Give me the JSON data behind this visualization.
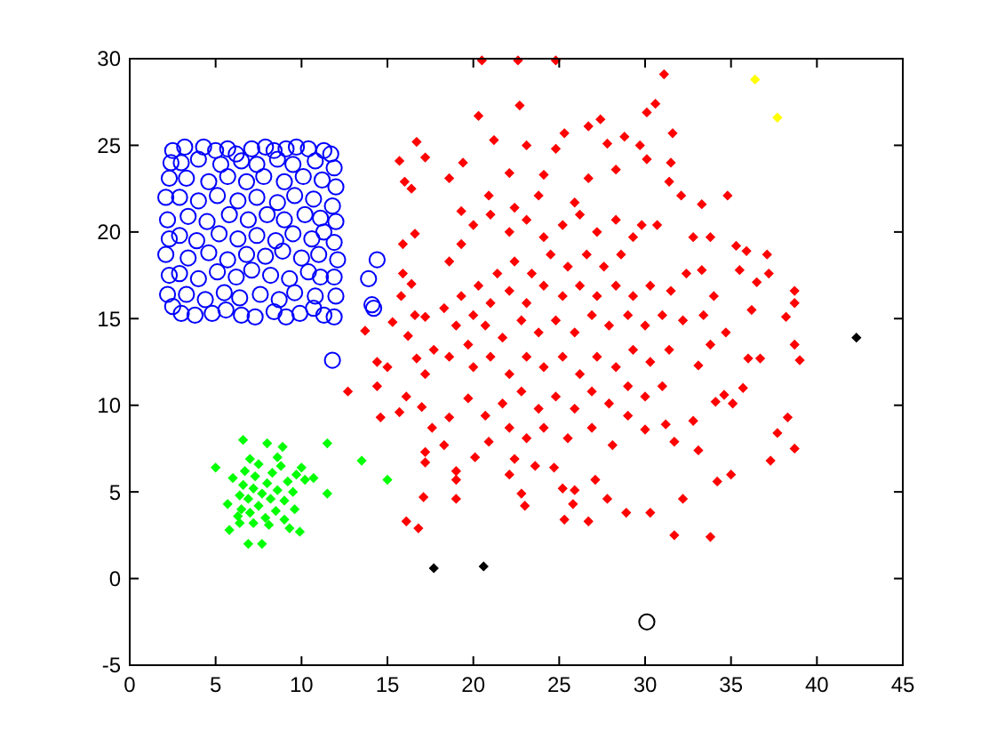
{
  "chart_data": {
    "type": "scatter",
    "xlim": [
      0,
      45
    ],
    "ylim": [
      -5,
      30
    ],
    "xticks": [
      0,
      5,
      10,
      15,
      20,
      25,
      30,
      35,
      40,
      45
    ],
    "yticks": [
      -5,
      0,
      5,
      10,
      15,
      20,
      25,
      30
    ],
    "marker": "diamond",
    "series": [
      {
        "color": "#0000ff",
        "marker": "circle",
        "x": [
          2.5,
          3.2,
          4.3,
          5.0,
          5.7,
          6.2,
          7.1,
          7.9,
          8.4,
          9.1,
          9.7,
          10.4,
          11.3,
          11.7,
          2.5,
          3.0,
          3.8,
          4.8,
          5.6,
          6.5,
          7.3,
          8.4,
          9.1,
          9.9,
          10.7,
          11.3,
          11.9,
          2.2,
          2.3,
          2.1,
          2.3,
          2.2,
          2.1,
          2.3,
          2.4,
          12.0,
          11.9,
          12.1,
          11.9,
          12.0,
          11.8,
          12.0,
          11.9,
          3.3,
          4.4,
          5.5,
          6.4,
          7.6,
          8.7,
          9.6,
          10.8,
          2.9,
          4.0,
          5.1,
          6.2,
          7.1,
          8.2,
          9.3,
          10.4,
          11.1,
          3.4,
          4.6,
          5.7,
          6.8,
          7.9,
          8.9,
          10.0,
          11.0,
          2.9,
          3.9,
          5.2,
          6.3,
          7.4,
          8.5,
          9.5,
          10.6,
          11.3,
          3.4,
          4.5,
          5.8,
          6.9,
          8.0,
          9.0,
          10.2,
          11.1,
          2.9,
          4.0,
          5.1,
          6.3,
          7.4,
          8.6,
          9.6,
          10.7,
          3.3,
          4.6,
          5.7,
          6.8,
          7.8,
          9.0,
          10.1,
          11.2,
          3.0,
          4.0,
          5.3,
          6.5,
          7.4,
          8.6,
          9.5,
          10.8,
          14.4,
          13.9,
          14.1,
          14.2,
          11.8
        ],
        "values": [
          24.7,
          24.9,
          24.9,
          24.7,
          24.8,
          24.5,
          24.8,
          24.9,
          24.7,
          24.8,
          24.9,
          24.8,
          24.7,
          24.5,
          15.7,
          15.3,
          15.2,
          15.3,
          15.5,
          15.2,
          15.1,
          15.4,
          15.1,
          15.3,
          15.6,
          15.2,
          15.1,
          16.4,
          17.5,
          18.7,
          19.6,
          20.7,
          22.0,
          23.1,
          24.0,
          16.3,
          17.4,
          18.4,
          19.4,
          20.6,
          21.5,
          22.6,
          23.7,
          16.4,
          16.1,
          16.5,
          16.2,
          16.4,
          16.1,
          16.5,
          16.3,
          17.6,
          17.3,
          17.7,
          17.4,
          17.8,
          17.5,
          17.3,
          17.7,
          17.4,
          18.5,
          18.8,
          18.4,
          18.7,
          18.6,
          18.9,
          18.5,
          18.7,
          19.8,
          19.5,
          19.9,
          19.6,
          19.8,
          19.5,
          19.9,
          19.6,
          20.0,
          20.9,
          20.6,
          21.0,
          20.7,
          21.0,
          20.7,
          21.0,
          20.8,
          22.0,
          21.8,
          22.1,
          21.8,
          22.0,
          21.7,
          22.1,
          21.9,
          23.1,
          22.9,
          23.2,
          22.9,
          23.2,
          22.9,
          23.2,
          23.0,
          24.0,
          24.2,
          23.9,
          24.1,
          23.9,
          24.2,
          23.9,
          24.1,
          18.4,
          17.3,
          15.8,
          15.6,
          12.6
        ]
      },
      {
        "color": "#00ff00",
        "x": [
          5.0,
          6.6,
          8.0,
          8.9,
          11.5,
          11.5,
          13.5,
          15.0,
          9.9,
          5.8,
          6.9,
          7.7,
          10.7,
          9.3,
          6.0,
          5.7,
          6.4,
          7.7,
          7.2,
          8.2,
          7.5,
          8.0,
          6.9,
          8.6,
          7.3,
          8.3,
          7.0,
          8.5,
          9.0,
          6.6,
          7.9,
          9.2,
          6.5,
          8.8,
          7.5,
          6.7,
          9.5,
          9.7,
          10.2,
          9.6,
          8.1,
          7.2,
          6.4,
          9.0,
          8.6,
          7.0,
          10.0,
          6.3
        ],
        "values": [
          6.4,
          8.0,
          7.8,
          7.6,
          7.8,
          4.9,
          6.8,
          5.7,
          2.7,
          2.8,
          2.0,
          2.0,
          5.8,
          2.9,
          5.8,
          4.3,
          3.2,
          4.9,
          5.2,
          4.6,
          4.2,
          5.5,
          4.6,
          5.1,
          5.9,
          6.1,
          3.8,
          3.9,
          4.5,
          5.4,
          3.5,
          5.6,
          4.0,
          6.5,
          6.6,
          6.2,
          5.0,
          6.0,
          5.7,
          4.0,
          3.1,
          3.2,
          4.8,
          3.4,
          7.0,
          6.9,
          6.4,
          3.6
        ]
      },
      {
        "color": "#ff0000",
        "x": [
          20.5,
          22.6,
          24.8,
          31.1,
          30.6,
          30.1,
          22.7,
          20.3,
          31.6,
          28.8,
          29.7,
          25.3,
          26.7,
          27.8,
          27.4,
          24.8,
          21.2,
          23.1,
          15.7,
          16.7,
          17.2,
          16.0,
          16.4,
          18.6,
          19.4,
          30.1,
          31.5,
          31.4,
          32.1,
          33.3,
          34.8,
          28.3,
          26.7,
          24.1,
          22.1,
          20.9,
          19.3,
          22.4,
          23.8,
          25.9,
          30.7,
          29.8,
          32.8,
          33.8,
          35.3,
          35.9,
          37.1,
          35.5,
          37.2,
          36.5,
          38.7,
          38.7,
          38.2,
          36.2,
          38.7,
          39.0,
          36.7,
          36.0,
          35.7,
          35.1,
          34.6,
          38.3,
          37.7,
          38.7,
          37.3,
          35.0,
          34.2,
          32.2,
          31.7,
          33.8,
          30.3,
          28.9,
          27.8,
          26.7,
          25.8,
          25.3,
          23.0,
          22.8,
          27.1,
          28.1,
          30.0,
          31.2,
          31.7,
          33.1,
          32.8,
          34.1,
          33.1,
          33.8,
          34.7,
          33.4,
          32.2,
          34.0,
          33.3,
          32.4,
          31.5,
          16.1,
          16.8,
          17.1,
          17.2,
          17.2,
          18.3,
          19.0,
          19.0,
          19.0,
          20.1,
          20.9,
          22.1,
          22.4,
          23.6,
          24.7,
          25.2,
          25.9,
          15.7,
          16.1,
          17.0,
          17.6,
          18.6,
          12.7,
          13.7,
          14.4,
          14.6,
          14.4,
          15.0,
          15.3,
          15.8,
          15.9,
          15.9,
          16.6,
          16.4,
          16.2,
          16.7,
          17.2,
          17.7,
          16.6,
          17.2,
          18.6,
          19.3,
          20.0,
          21.0,
          22.1,
          23.1,
          24.1,
          25.2,
          26.2,
          27.2,
          28.3,
          29.3,
          28.6,
          27.6,
          26.6,
          25.5,
          24.5,
          23.4,
          22.4,
          21.4,
          20.3,
          19.3,
          18.3,
          19.0,
          20.0,
          21.0,
          22.1,
          23.1,
          24.1,
          25.2,
          26.2,
          27.2,
          28.3,
          29.3,
          30.3,
          31.0,
          30.0,
          29.0,
          27.9,
          26.9,
          25.9,
          24.8,
          23.8,
          22.8,
          21.7,
          20.7,
          19.7,
          18.6,
          20.0,
          21.0,
          22.1,
          23.1,
          24.1,
          25.2,
          26.2,
          27.2,
          28.3,
          29.3,
          30.3,
          31.4,
          31.0,
          30.0,
          29.0,
          27.9,
          26.9,
          25.9,
          24.8,
          23.8,
          22.8,
          21.7,
          20.7,
          19.7,
          22.1,
          23.1,
          24.1,
          25.5,
          26.9,
          29.0
        ],
        "values": [
          29.9,
          29.9,
          29.9,
          29.1,
          27.4,
          26.9,
          27.3,
          26.7,
          25.7,
          25.5,
          25.0,
          25.7,
          26.1,
          25.1,
          26.5,
          24.8,
          25.3,
          25.0,
          24.1,
          25.2,
          24.3,
          22.9,
          22.5,
          23.1,
          24.0,
          24.2,
          24.0,
          22.9,
          22.1,
          21.6,
          22.1,
          23.6,
          23.1,
          23.3,
          23.4,
          22.1,
          21.2,
          21.4,
          22.1,
          21.7,
          20.4,
          20.4,
          19.7,
          19.7,
          19.2,
          18.9,
          18.7,
          17.8,
          17.6,
          17.1,
          16.6,
          15.9,
          15.1,
          15.5,
          13.5,
          12.6,
          12.7,
          12.7,
          11.0,
          10.1,
          10.6,
          9.3,
          8.4,
          7.5,
          6.8,
          6.0,
          5.6,
          4.6,
          2.5,
          2.4,
          3.8,
          3.8,
          4.6,
          3.3,
          4.3,
          3.4,
          4.2,
          4.9,
          5.7,
          7.7,
          8.6,
          8.9,
          7.9,
          7.4,
          9.1,
          10.2,
          12.3,
          13.5,
          14.2,
          15.2,
          14.9,
          16.3,
          17.8,
          17.6,
          16.6,
          3.3,
          2.9,
          4.7,
          6.7,
          7.3,
          7.7,
          4.6,
          5.7,
          6.2,
          7.0,
          7.9,
          6.0,
          6.9,
          6.5,
          6.4,
          5.2,
          5.1,
          9.6,
          10.5,
          9.9,
          8.7,
          9.3,
          10.8,
          14.3,
          12.5,
          9.3,
          11.1,
          12.2,
          14.8,
          16.3,
          17.6,
          19.3,
          19.9,
          17.0,
          14.0,
          12.7,
          11.8,
          13.2,
          15.2,
          15.1,
          18.3,
          19.3,
          20.4,
          21.0,
          20.0,
          20.7,
          19.7,
          20.4,
          21.0,
          20.0,
          20.7,
          19.7,
          18.7,
          18.0,
          18.7,
          18.0,
          18.7,
          17.6,
          18.3,
          17.6,
          16.9,
          16.3,
          15.6,
          14.6,
          15.2,
          15.9,
          16.6,
          15.9,
          16.9,
          16.3,
          16.9,
          16.3,
          16.9,
          16.3,
          16.9,
          15.2,
          14.6,
          15.2,
          14.6,
          15.2,
          14.2,
          14.9,
          14.2,
          14.9,
          13.9,
          14.6,
          13.5,
          12.8,
          12.2,
          12.8,
          11.8,
          12.8,
          12.2,
          12.8,
          11.8,
          12.8,
          12.2,
          13.2,
          12.5,
          13.2,
          11.1,
          10.5,
          11.1,
          10.1,
          10.8,
          9.8,
          10.5,
          9.8,
          10.8,
          10.1,
          9.4,
          10.4,
          8.7,
          8.1,
          8.7,
          8.1,
          8.7,
          9.4
        ]
      },
      {
        "color": "#000000",
        "x": [
          17.7,
          20.6,
          42.3
        ],
        "values": [
          0.6,
          0.7,
          13.9
        ]
      },
      {
        "color": "#000000",
        "marker": "circle",
        "x": [
          30.1
        ],
        "values": [
          -2.5
        ]
      },
      {
        "color": "#ffff00",
        "x": [
          36.4,
          37.7
        ],
        "values": [
          28.8,
          26.6
        ]
      }
    ]
  }
}
